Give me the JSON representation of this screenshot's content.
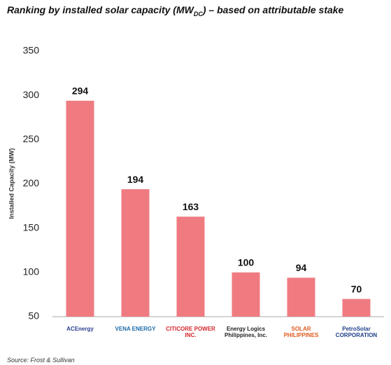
{
  "chart_data": {
    "type": "bar",
    "title": "Ranking by installed solar capacity (MW",
    "title_subscript": "DC",
    "title_rest": ") – based on attributable stake",
    "y_label": "Installed Capacity (MW)",
    "categories": [
      "ACEnergy",
      "VENA ENERGY",
      "CITICORE POWER INC.",
      "Energy Logics Philippines, Inc.",
      "SOLAR PHILIPPINES",
      "PetroSolar CORPORATION"
    ],
    "values": [
      294,
      194,
      163,
      100,
      94,
      70
    ],
    "color": "#ef7b81",
    "ylim": [
      50,
      350
    ],
    "yticks": [
      50,
      100,
      150,
      200,
      250,
      300,
      350
    ],
    "grid": false,
    "source": "Source: Frost & Sullivan"
  }
}
